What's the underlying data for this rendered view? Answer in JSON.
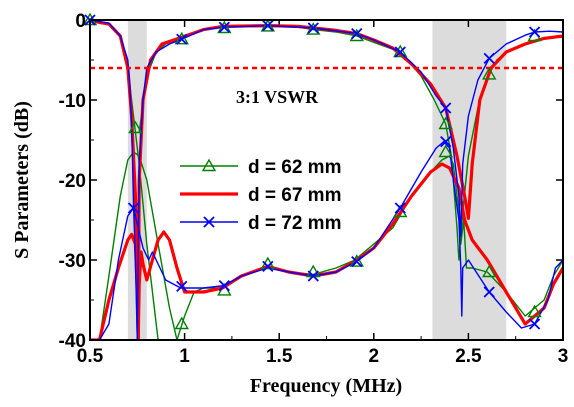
{
  "chart_data": {
    "type": "line",
    "xlabel": "Frequency (MHz)",
    "ylabel": "S Parameters (dB)",
    "xlim": [
      0.5,
      3.0
    ],
    "ylim": [
      -40,
      0
    ],
    "xticks": [
      "0.5",
      "1",
      "1.5",
      "2",
      "2.5",
      "3"
    ],
    "yticks": [
      "0",
      "-10",
      "-20",
      "-30",
      "-40"
    ],
    "shaded_bands": [
      [
        0.7,
        0.8
      ],
      [
        2.31,
        2.7
      ]
    ],
    "reference_line": {
      "y": -6,
      "label": "3:1 VSWR",
      "color": "#ff0000"
    },
    "legend_position": "center-left",
    "series": [
      {
        "name": "d = 62 mm",
        "color": "#008000",
        "marker": "triangle",
        "thick": false,
        "curves": [
          [
            [
              0.5,
              0
            ],
            [
              0.6,
              -0.5
            ],
            [
              0.66,
              -2
            ],
            [
              0.7,
              -6
            ],
            [
              0.72,
              -10
            ],
            [
              0.74,
              -14
            ],
            [
              0.76,
              -18
            ],
            [
              0.8,
              -28
            ],
            [
              0.86,
              -40
            ]
          ],
          [
            [
              0.5,
              -40
            ],
            [
              0.55,
              -40
            ],
            [
              0.6,
              -32
            ],
            [
              0.66,
              -22
            ],
            [
              0.7,
              -17.5
            ],
            [
              0.73,
              -16.5
            ],
            [
              0.76,
              -17
            ],
            [
              0.8,
              -20
            ],
            [
              0.86,
              -28
            ],
            [
              0.92,
              -36
            ],
            [
              0.96,
              -40
            ]
          ],
          [
            [
              0.96,
              -40
            ],
            [
              1.0,
              -37
            ],
            [
              1.05,
              -34
            ],
            [
              1.1,
              -33.5
            ],
            [
              1.2,
              -33.5
            ],
            [
              1.3,
              -32
            ],
            [
              1.43,
              -30.8
            ],
            [
              1.55,
              -31.5
            ],
            [
              1.68,
              -31.8
            ],
            [
              1.8,
              -31
            ],
            [
              1.9,
              -30
            ],
            [
              2.0,
              -28
            ],
            [
              2.1,
              -26
            ],
            [
              2.2,
              -22
            ],
            [
              2.3,
              -19
            ],
            [
              2.36,
              -17.5
            ],
            [
              2.4,
              -17
            ],
            [
              2.42,
              -18
            ],
            [
              2.45,
              -24
            ],
            [
              2.46,
              -28
            ],
            [
              2.475,
              -25
            ],
            [
              2.49,
              -31
            ],
            [
              2.52,
              -31
            ],
            [
              2.6,
              -31.5
            ],
            [
              2.7,
              -34
            ],
            [
              2.8,
              -37
            ],
            [
              2.9,
              -35
            ],
            [
              2.95,
              -32
            ],
            [
              3.0,
              -30
            ]
          ],
          [
            [
              0.76,
              -14
            ],
            [
              0.8,
              -7
            ],
            [
              0.85,
              -4
            ],
            [
              0.9,
              -3
            ],
            [
              0.98,
              -2.3
            ],
            [
              1.1,
              -1.2
            ],
            [
              1.2,
              -0.9
            ],
            [
              1.44,
              -0.8
            ],
            [
              1.6,
              -0.9
            ],
            [
              1.68,
              -1.2
            ],
            [
              1.8,
              -1.5
            ],
            [
              1.91,
              -2.0
            ],
            [
              2.0,
              -2.8
            ],
            [
              2.14,
              -4.0
            ],
            [
              2.25,
              -7
            ],
            [
              2.32,
              -10
            ],
            [
              2.38,
              -13
            ],
            [
              2.41,
              -17
            ],
            [
              2.44,
              -26
            ],
            [
              2.45,
              -30
            ],
            [
              2.47,
              -24
            ],
            [
              2.5,
              -17
            ],
            [
              2.55,
              -11
            ],
            [
              2.6,
              -7.2
            ],
            [
              2.65,
              -5
            ],
            [
              2.7,
              -4
            ],
            [
              2.8,
              -3
            ],
            [
              2.9,
              -2.2
            ],
            [
              3.0,
              -2
            ]
          ]
        ],
        "markers": [
          [
            0.5,
            0
          ],
          [
            0.74,
            -13.5
          ],
          [
            0.985,
            -38
          ],
          [
            1.21,
            -33.8
          ],
          [
            1.44,
            -30.5
          ],
          [
            1.68,
            -31.5
          ],
          [
            1.91,
            -30.2
          ],
          [
            2.14,
            -24
          ],
          [
            2.38,
            -13
          ],
          [
            2.38,
            -16.5
          ],
          [
            2.61,
            -31.5
          ],
          [
            2.85,
            -36.5
          ],
          [
            0.985,
            -2.4
          ],
          [
            1.21,
            -1.0
          ],
          [
            1.44,
            -0.8
          ],
          [
            1.68,
            -1.2
          ],
          [
            1.91,
            -2.0
          ],
          [
            2.14,
            -4.0
          ],
          [
            2.61,
            -6.8
          ],
          [
            2.85,
            -2.0
          ]
        ]
      },
      {
        "name": "d = 67 mm",
        "color": "#ff0000",
        "marker": "none",
        "thick": true,
        "curves": [
          [
            [
              0.5,
              0
            ],
            [
              0.55,
              -0.3
            ],
            [
              0.6,
              -0.5
            ],
            [
              0.66,
              -2
            ],
            [
              0.7,
              -6
            ],
            [
              0.72,
              -12
            ],
            [
              0.74,
              -22
            ],
            [
              0.75,
              -30
            ],
            [
              0.755,
              -40
            ]
          ],
          [
            [
              0.5,
              -40
            ],
            [
              0.55,
              -40
            ],
            [
              0.6,
              -35
            ],
            [
              0.65,
              -31
            ],
            [
              0.7,
              -27.5
            ],
            [
              0.72,
              -26.8
            ],
            [
              0.74,
              -28
            ],
            [
              0.75,
              -34
            ],
            [
              0.755,
              -40
            ]
          ],
          [
            [
              0.755,
              -40
            ],
            [
              0.76,
              -33
            ],
            [
              0.77,
              -29
            ],
            [
              0.78,
              -30.5
            ],
            [
              0.8,
              -32.5
            ],
            [
              0.83,
              -30
            ],
            [
              0.86,
              -27.5
            ],
            [
              0.89,
              -26.5
            ],
            [
              0.92,
              -27.5
            ],
            [
              0.96,
              -31
            ],
            [
              1.0,
              -34
            ],
            [
              1.1,
              -34
            ],
            [
              1.2,
              -33.5
            ],
            [
              1.3,
              -32
            ],
            [
              1.44,
              -30.8
            ],
            [
              1.55,
              -31.5
            ],
            [
              1.68,
              -32
            ],
            [
              1.8,
              -31.5
            ],
            [
              1.91,
              -30
            ],
            [
              2.0,
              -28.5
            ],
            [
              2.1,
              -25.5
            ],
            [
              2.2,
              -22
            ],
            [
              2.3,
              -19
            ],
            [
              2.36,
              -18
            ],
            [
              2.4,
              -18.5
            ],
            [
              2.45,
              -21
            ],
            [
              2.48,
              -25
            ],
            [
              2.52,
              -27.5
            ],
            [
              2.6,
              -30
            ],
            [
              2.7,
              -34
            ],
            [
              2.8,
              -38
            ],
            [
              2.9,
              -36
            ],
            [
              2.95,
              -33
            ],
            [
              3.0,
              -31
            ]
          ],
          [
            [
              0.755,
              -40
            ],
            [
              0.76,
              -20
            ],
            [
              0.78,
              -10
            ],
            [
              0.82,
              -5
            ],
            [
              0.88,
              -3
            ],
            [
              0.98,
              -2.2
            ],
            [
              1.1,
              -1.2
            ],
            [
              1.2,
              -0.8
            ],
            [
              1.44,
              -0.7
            ],
            [
              1.6,
              -0.8
            ],
            [
              1.68,
              -1.0
            ],
            [
              1.8,
              -1.3
            ],
            [
              1.91,
              -1.7
            ],
            [
              2.0,
              -2.5
            ],
            [
              2.1,
              -3.5
            ],
            [
              2.2,
              -5.5
            ],
            [
              2.3,
              -8
            ],
            [
              2.38,
              -11
            ],
            [
              2.44,
              -17
            ],
            [
              2.48,
              -22
            ],
            [
              2.5,
              -24.8
            ],
            [
              2.52,
              -18
            ],
            [
              2.56,
              -10
            ],
            [
              2.62,
              -6
            ],
            [
              2.7,
              -4
            ],
            [
              2.8,
              -3
            ],
            [
              2.9,
              -2.3
            ],
            [
              3.0,
              -2
            ]
          ]
        ],
        "markers": []
      },
      {
        "name": "d = 72 mm",
        "color": "#0000ff",
        "marker": "x",
        "thick": false,
        "curves": [
          [
            [
              0.5,
              0
            ],
            [
              0.6,
              -0.4
            ],
            [
              0.66,
              -2
            ],
            [
              0.7,
              -5
            ],
            [
              0.71,
              -8
            ],
            [
              0.72,
              -13
            ],
            [
              0.725,
              -18
            ],
            [
              0.73,
              -23
            ],
            [
              0.74,
              -30
            ],
            [
              0.75,
              -40
            ]
          ],
          [
            [
              0.5,
              -40
            ],
            [
              0.55,
              -40
            ],
            [
              0.6,
              -38
            ],
            [
              0.65,
              -30
            ],
            [
              0.7,
              -24.5
            ],
            [
              0.73,
              -23.5
            ],
            [
              0.75,
              -25.5
            ],
            [
              0.78,
              -28.5
            ],
            [
              0.81,
              -30
            ],
            [
              0.83,
              -29
            ],
            [
              0.86,
              -30.5
            ],
            [
              0.9,
              -32.5
            ],
            [
              0.94,
              -33
            ],
            [
              0.98,
              -33.5
            ],
            [
              1.1,
              -33.5
            ],
            [
              1.21,
              -33.2
            ],
            [
              1.3,
              -32
            ],
            [
              1.44,
              -31
            ],
            [
              1.55,
              -31.5
            ],
            [
              1.68,
              -32
            ],
            [
              1.8,
              -31.5
            ],
            [
              1.91,
              -30.2
            ],
            [
              2.0,
              -28.5
            ],
            [
              2.14,
              -23.5
            ],
            [
              2.25,
              -19
            ],
            [
              2.33,
              -16
            ],
            [
              2.37,
              -15.2
            ],
            [
              2.4,
              -16
            ],
            [
              2.42,
              -20
            ],
            [
              2.45,
              -25
            ],
            [
              2.46,
              -31
            ],
            [
              2.465,
              -37
            ],
            [
              2.47,
              -31
            ],
            [
              2.5,
              -30
            ],
            [
              2.61,
              -34
            ],
            [
              2.7,
              -36.5
            ],
            [
              2.78,
              -38.5
            ],
            [
              2.85,
              -38
            ],
            [
              2.92,
              -35
            ],
            [
              2.96,
              -31
            ],
            [
              3.0,
              -30
            ]
          ],
          [
            [
              0.75,
              -40
            ],
            [
              0.76,
              -18
            ],
            [
              0.78,
              -10
            ],
            [
              0.8,
              -6
            ],
            [
              0.85,
              -4
            ],
            [
              0.92,
              -3
            ],
            [
              0.985,
              -2.4
            ],
            [
              1.1,
              -1.2
            ],
            [
              1.21,
              -0.9
            ],
            [
              1.44,
              -0.7
            ],
            [
              1.68,
              -1.0
            ],
            [
              1.91,
              -1.7
            ],
            [
              2.0,
              -2.5
            ],
            [
              2.14,
              -4.0
            ],
            [
              2.25,
              -6.5
            ],
            [
              2.33,
              -9.5
            ],
            [
              2.38,
              -11
            ],
            [
              2.42,
              -16
            ],
            [
              2.45,
              -22
            ],
            [
              2.46,
              -27
            ],
            [
              2.47,
              -18
            ],
            [
              2.5,
              -12
            ],
            [
              2.55,
              -7.5
            ],
            [
              2.61,
              -4.8
            ],
            [
              2.7,
              -3
            ],
            [
              2.8,
              -1.9
            ],
            [
              2.85,
              -1.5
            ],
            [
              2.93,
              -1.4
            ],
            [
              3.0,
              -1.5
            ]
          ]
        ],
        "markers": [
          [
            0.5,
            0
          ],
          [
            0.73,
            -23.5
          ],
          [
            0.985,
            -33.3
          ],
          [
            1.21,
            -33.2
          ],
          [
            1.44,
            -30.8
          ],
          [
            1.68,
            -32
          ],
          [
            1.91,
            -30.2
          ],
          [
            2.14,
            -23.5
          ],
          [
            2.38,
            -15.2
          ],
          [
            2.38,
            -11
          ],
          [
            2.61,
            -34
          ],
          [
            2.85,
            -38
          ],
          [
            0.985,
            -2.4
          ],
          [
            1.21,
            -0.9
          ],
          [
            1.44,
            -0.7
          ],
          [
            1.68,
            -1.0
          ],
          [
            1.91,
            -1.7
          ],
          [
            2.14,
            -4.0
          ],
          [
            2.61,
            -4.8
          ],
          [
            2.85,
            -1.5
          ]
        ]
      }
    ]
  }
}
